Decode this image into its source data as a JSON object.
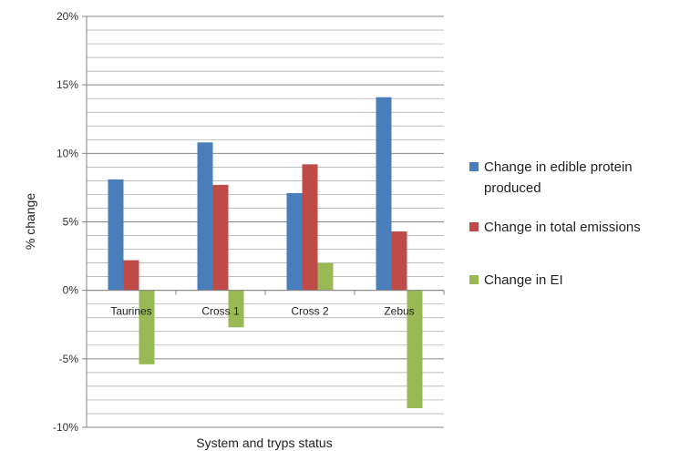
{
  "chart_data": {
    "type": "bar",
    "title": "",
    "xlabel": "System and tryps status",
    "ylabel": "% change",
    "categories": [
      "Taurines",
      "Cross 1",
      "Cross 2",
      "Zebus"
    ],
    "series": [
      {
        "name": "Change in edible protein produced",
        "color": "#4a7ebb",
        "values": [
          8.1,
          10.8,
          7.1,
          14.1
        ]
      },
      {
        "name": "Change in total emissions",
        "color": "#be4b48",
        "values": [
          2.2,
          7.7,
          9.2,
          4.3
        ]
      },
      {
        "name": "Change in EI",
        "color": "#98b954",
        "values": [
          -5.4,
          -2.7,
          2.0,
          -8.6
        ]
      }
    ],
    "ylim": [
      -10,
      20
    ],
    "yticks": [
      -10,
      -5,
      0,
      5,
      10,
      15,
      20
    ],
    "ytick_labels": [
      "-10%",
      "-5%",
      "0%",
      "5%",
      "10%",
      "15%",
      "20%"
    ],
    "grid": true,
    "legend_position": "right"
  }
}
